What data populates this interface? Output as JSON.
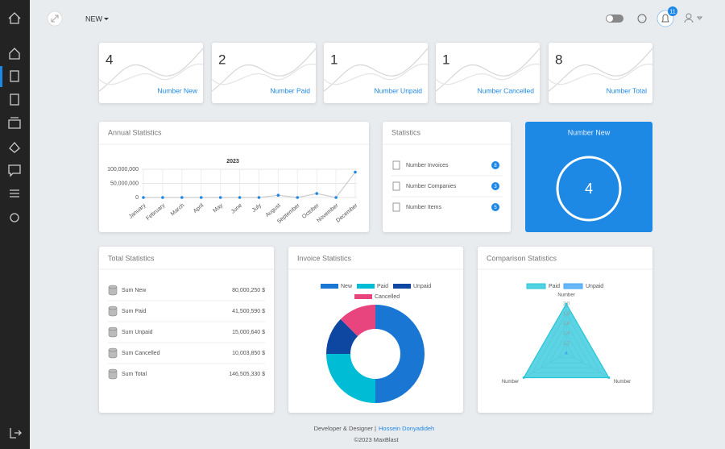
{
  "header": {
    "menu_label": "NEW",
    "notification_count": 11
  },
  "stat_cards": [
    {
      "value": 4,
      "label": "Number New"
    },
    {
      "value": 2,
      "label": "Number Paid"
    },
    {
      "value": 1,
      "label": "Number Unpaid"
    },
    {
      "value": 1,
      "label": "Number Cancelled"
    },
    {
      "value": 8,
      "label": "Number Total"
    }
  ],
  "chart_data": [
    {
      "type": "line",
      "card_title": "Annual Statistics",
      "title": "2023",
      "categories": [
        "January",
        "February",
        "March",
        "April",
        "May",
        "June",
        "July",
        "August",
        "September",
        "October",
        "November",
        "December"
      ],
      "values": [
        0,
        0,
        0,
        0,
        0,
        0,
        0,
        8000000,
        0,
        14000000,
        0,
        90000000
      ],
      "color": "#1e88e5",
      "line_color": "#cccccc",
      "ylim": [
        0,
        100000000
      ],
      "yticks": [
        0,
        {
          "value": 50000000,
          "label": "50,000,000"
        },
        {
          "value": 100000000,
          "label": "100,000,000"
        }
      ],
      "grid": true
    },
    {
      "type": "donut",
      "card_title": "Invoice Statistics",
      "categories": [
        "New",
        "Paid",
        "Unpaid",
        "Cancelled"
      ],
      "values": [
        4,
        2,
        1,
        1
      ],
      "colors": [
        "#1976d2",
        "#00bcd4",
        "#0d47a1",
        "#e8457e"
      ]
    },
    {
      "type": "radar",
      "card_title": "Comparison Statistics",
      "categories": [
        "Number",
        "Number",
        "Number"
      ],
      "series": [
        {
          "name": "Paid",
          "color": "#26c6da",
          "values": [
            2,
            2,
            2
          ]
        },
        {
          "name": "Unpaid",
          "color": "#42a5f5",
          "values": [
            1,
            1,
            1
          ]
        }
      ],
      "rlim": [
        1,
        2
      ],
      "rticks": [
        1.2,
        1.4,
        1.6,
        1.8,
        {
          "value": 2,
          "label": "2.0"
        }
      ]
    }
  ],
  "statistics": {
    "title": "Statistics",
    "rows": [
      {
        "label": "Number Invoices",
        "count": 8
      },
      {
        "label": "Number Companies",
        "count": 3
      },
      {
        "label": "Number Items",
        "count": 5
      }
    ]
  },
  "number_new_card": {
    "title": "Number New",
    "value": 4
  },
  "total_statistics": {
    "title": "Total Statistics",
    "rows": [
      [
        "Sum New",
        "80,000,250 $"
      ],
      [
        "Sum Paid",
        "41,500,590 $"
      ],
      [
        "Sum Unpaid",
        "15,000,640 $"
      ],
      [
        "Sum Cancelled",
        "10,003,850 $"
      ],
      [
        "Sum Total",
        "146,505,330 $"
      ]
    ]
  },
  "footer": {
    "credit": "Developer & Designer |",
    "author": "Hossein Donyadideh",
    "copyright": "©2023 MaxBlast"
  }
}
